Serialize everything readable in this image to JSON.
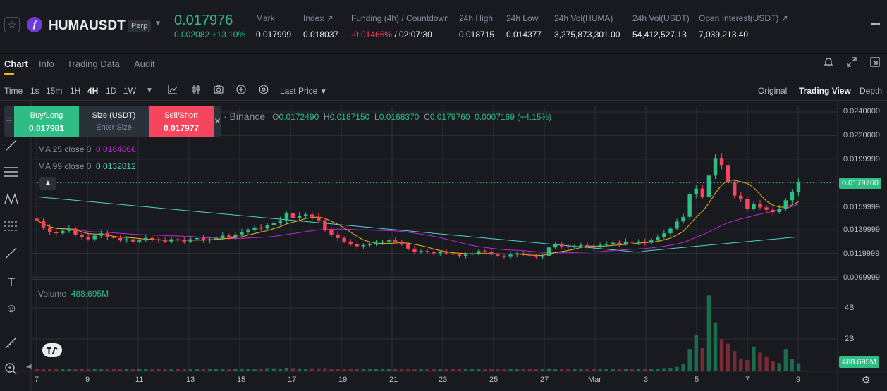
{
  "ticker": {
    "symbol": "HUMAUSDT",
    "badge": "Perp",
    "last_price": "0.017976",
    "change": "0.002082 +13.10%",
    "stats": [
      {
        "label": "Mark",
        "value": "0.017999"
      },
      {
        "label": "Index ↗",
        "value": "0.018037"
      },
      {
        "label": "Funding (4h) / Countdown",
        "value_rate": "-0.01466%",
        "value_count": " / 02:07:30"
      },
      {
        "label": "24h High",
        "value": "0.018715"
      },
      {
        "label": "24h Low",
        "value": "0.014377"
      },
      {
        "label": "24h Vol(HUMA)",
        "value": "3,275,873,301.00"
      },
      {
        "label": "24h Vol(USDT)",
        "value": "54,412,527.13"
      },
      {
        "label": "Open Interest(USDT) ↗",
        "value": "7,039,213.40"
      }
    ],
    "colors": {
      "up": "#2ebd85",
      "down": "#f6465d",
      "accent": "#f0b90b"
    }
  },
  "tabs": [
    "Chart",
    "Info",
    "Trading Data",
    "Audit"
  ],
  "toolbar": {
    "time_label": "Time",
    "intervals": [
      "1s",
      "15m",
      "1H",
      "4H",
      "1D",
      "1W"
    ],
    "active_interval": "4H",
    "price_type": "Last Price",
    "views": [
      "Original",
      "Trading View",
      "Depth"
    ],
    "active_view": "Trading View"
  },
  "order_panel": {
    "buy_label": "Buy/Long",
    "buy_price": "0.017981",
    "size_label": "Size (USDT)",
    "size_placeholder": "Enter Size",
    "sell_label": "Sell/Short",
    "sell_price": "0.017977"
  },
  "legend": {
    "source": "· Binance",
    "open_k": "O",
    "open": "0.0172490",
    "high_k": "H",
    "high": "0.0187150",
    "low_k": "L",
    "low": "0.0168370",
    "close_k": "C",
    "close": "0.0179760",
    "change": "0.0007169 (+4.15%)",
    "ma25_label": "MA 25 close 0",
    "ma25_value": "0.0164866",
    "ma99_label": "MA 99 close 0",
    "ma99_value": "0.0132812",
    "volume_label": "Volume",
    "volume_value": "488.695M"
  },
  "chart_data": {
    "type": "candlestick",
    "interval": "4H",
    "price_axis_ticks": [
      "0.0240000",
      "0.0220000",
      "0.0199999",
      "0.0179760",
      "0.0159999",
      "0.0139999",
      "0.0119999",
      "0.0099999"
    ],
    "price_ylim": [
      0.0099999,
      0.024
    ],
    "current_price": "0.0179760",
    "volume_axis_ticks": [
      "4B",
      "2B"
    ],
    "current_volume": "488.695M",
    "date_ticks": [
      "7",
      "9",
      "11",
      "13",
      "15",
      "17",
      "19",
      "21",
      "23",
      "25",
      "27",
      "Mar",
      "3",
      "5",
      "7",
      "9"
    ],
    "ma_colors": {
      "ma7": "#f0b90b",
      "ma25": "#c026d3",
      "ma99": "#4fd1c5"
    },
    "close_series": [
      0.0148,
      0.0142,
      0.0138,
      0.0137,
      0.0139,
      0.0141,
      0.0136,
      0.0134,
      0.0132,
      0.0135,
      0.0137,
      0.0134,
      0.0133,
      0.0131,
      0.0132,
      0.013,
      0.0131,
      0.0133,
      0.0132,
      0.0131,
      0.013,
      0.0132,
      0.0131,
      0.013,
      0.0132,
      0.0133,
      0.0131,
      0.0132,
      0.0133,
      0.0135,
      0.0134,
      0.0136,
      0.0138,
      0.014,
      0.0142,
      0.0141,
      0.0144,
      0.0146,
      0.0148,
      0.0154,
      0.015,
      0.0152,
      0.0153,
      0.0151,
      0.0148,
      0.014,
      0.0136,
      0.0133,
      0.013,
      0.0128,
      0.0126,
      0.0127,
      0.0128,
      0.0129,
      0.013,
      0.0131,
      0.013,
      0.0128,
      0.0124,
      0.0121,
      0.0122,
      0.0121,
      0.012,
      0.0121,
      0.012,
      0.0119,
      0.0118,
      0.0119,
      0.012,
      0.0122,
      0.0121,
      0.0119,
      0.0118,
      0.0117,
      0.0119,
      0.012,
      0.0119,
      0.0118,
      0.0117,
      0.0118,
      0.0125,
      0.0128,
      0.0126,
      0.0125,
      0.0126,
      0.0127,
      0.0126,
      0.0125,
      0.0127,
      0.0128,
      0.0129,
      0.0128,
      0.013,
      0.0129,
      0.013,
      0.0129,
      0.0131,
      0.0134,
      0.0137,
      0.0141,
      0.0147,
      0.0151,
      0.017,
      0.0175,
      0.0168,
      0.0186,
      0.0201,
      0.0195,
      0.018,
      0.0169,
      0.0166,
      0.0158,
      0.0162,
      0.0159,
      0.0157,
      0.0155,
      0.0158,
      0.0165,
      0.0172,
      0.018
    ],
    "volume_series": [
      0.05,
      0.06,
      0.05,
      0.04,
      0.05,
      0.04,
      0.05,
      0.06,
      0.05,
      0.04,
      0.05,
      0.06,
      0.05,
      0.04,
      0.05,
      0.05,
      0.06,
      0.05,
      0.04,
      0.05,
      0.06,
      0.05,
      0.04,
      0.05,
      0.06,
      0.05,
      0.06,
      0.05,
      0.06,
      0.08,
      0.07,
      0.09,
      0.1,
      0.08,
      0.09,
      0.1,
      0.12,
      0.11,
      0.1,
      0.15,
      0.12,
      0.1,
      0.09,
      0.11,
      0.1,
      0.12,
      0.09,
      0.08,
      0.07,
      0.08,
      0.06,
      0.07,
      0.06,
      0.07,
      0.05,
      0.06,
      0.05,
      0.06,
      0.07,
      0.06,
      0.05,
      0.06,
      0.05,
      0.04,
      0.05,
      0.06,
      0.05,
      0.04,
      0.05,
      0.06,
      0.05,
      0.04,
      0.05,
      0.04,
      0.05,
      0.06,
      0.05,
      0.04,
      0.05,
      0.06,
      0.1,
      0.08,
      0.07,
      0.06,
      0.07,
      0.06,
      0.05,
      0.06,
      0.07,
      0.06,
      0.07,
      0.06,
      0.07,
      0.06,
      0.07,
      0.08,
      0.09,
      0.1,
      0.12,
      0.15,
      0.25,
      0.45,
      1.4,
      2.4,
      1.5,
      5.0,
      3.2,
      2.1,
      1.8,
      1.3,
      0.8,
      0.7,
      1.6,
      1.2,
      0.9,
      0.6,
      0.5,
      1.4,
      0.8,
      0.49
    ]
  }
}
